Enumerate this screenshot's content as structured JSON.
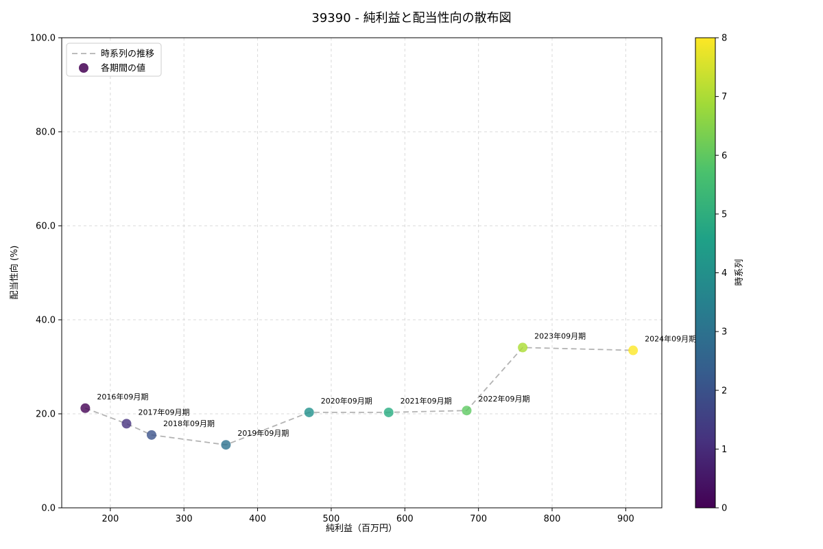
{
  "chart_data": {
    "type": "scatter",
    "title": "39390 - 純利益と配当性向の散布図",
    "xlabel": "純利益（百万円）",
    "ylabel": "配当性向 (%)",
    "xlim": [
      134,
      949
    ],
    "ylim": [
      0,
      100
    ],
    "grid": true,
    "xticks": [
      {
        "v": 200,
        "label": "200"
      },
      {
        "v": 300,
        "label": "300"
      },
      {
        "v": 400,
        "label": "400"
      },
      {
        "v": 500,
        "label": "500"
      },
      {
        "v": 600,
        "label": "600"
      },
      {
        "v": 700,
        "label": "700"
      },
      {
        "v": 800,
        "label": "800"
      },
      {
        "v": 900,
        "label": "900"
      }
    ],
    "yticks": [
      {
        "v": 0,
        "label": "0.0"
      },
      {
        "v": 20,
        "label": "20.0"
      },
      {
        "v": 40,
        "label": "40.0"
      },
      {
        "v": 60,
        "label": "60.0"
      },
      {
        "v": 80,
        "label": "80.0"
      },
      {
        "v": 100,
        "label": "100.0"
      }
    ],
    "colors": {
      "grid": "#d9d9d9",
      "trend_line": "#b3b3b3",
      "spine": "#000000"
    },
    "legend": {
      "position": "upper-left",
      "items": [
        {
          "type": "line",
          "label": "時系列の推移",
          "color": "#b3b3b3"
        },
        {
          "type": "marker",
          "label": "各期間の値",
          "color": "#440154"
        }
      ]
    },
    "points": [
      {
        "label": "2016年09月期",
        "x": 166,
        "y": 21.2,
        "t": 0,
        "color": "#440154"
      },
      {
        "label": "2017年09月期",
        "x": 222,
        "y": 17.9,
        "t": 1,
        "color": "#46327e"
      },
      {
        "label": "2018年09月期",
        "x": 256,
        "y": 15.5,
        "t": 2,
        "color": "#3b528b"
      },
      {
        "label": "2019年09月期",
        "x": 357,
        "y": 13.4,
        "t": 3,
        "color": "#2c728e"
      },
      {
        "label": "2020年09月期",
        "x": 470,
        "y": 20.3,
        "t": 4,
        "color": "#21918c"
      },
      {
        "label": "2021年09月期",
        "x": 578,
        "y": 20.3,
        "t": 5,
        "color": "#27ad81"
      },
      {
        "label": "2022年09月期",
        "x": 684,
        "y": 20.7,
        "t": 6,
        "color": "#5ec962"
      },
      {
        "label": "2023年09月期",
        "x": 760,
        "y": 34.1,
        "t": 7,
        "color": "#aadc32"
      },
      {
        "label": "2024年09月期",
        "x": 910,
        "y": 33.5,
        "t": 8,
        "color": "#fde725"
      }
    ],
    "colorbar": {
      "label": "時系列",
      "min": 0,
      "max": 8,
      "ticks": [
        "0",
        "1",
        "2",
        "3",
        "4",
        "5",
        "6",
        "7",
        "8"
      ],
      "gradient": [
        "#440154",
        "#46327e",
        "#365c8d",
        "#277f8e",
        "#1fa187",
        "#4ac16d",
        "#a0da39",
        "#fde725"
      ]
    }
  }
}
